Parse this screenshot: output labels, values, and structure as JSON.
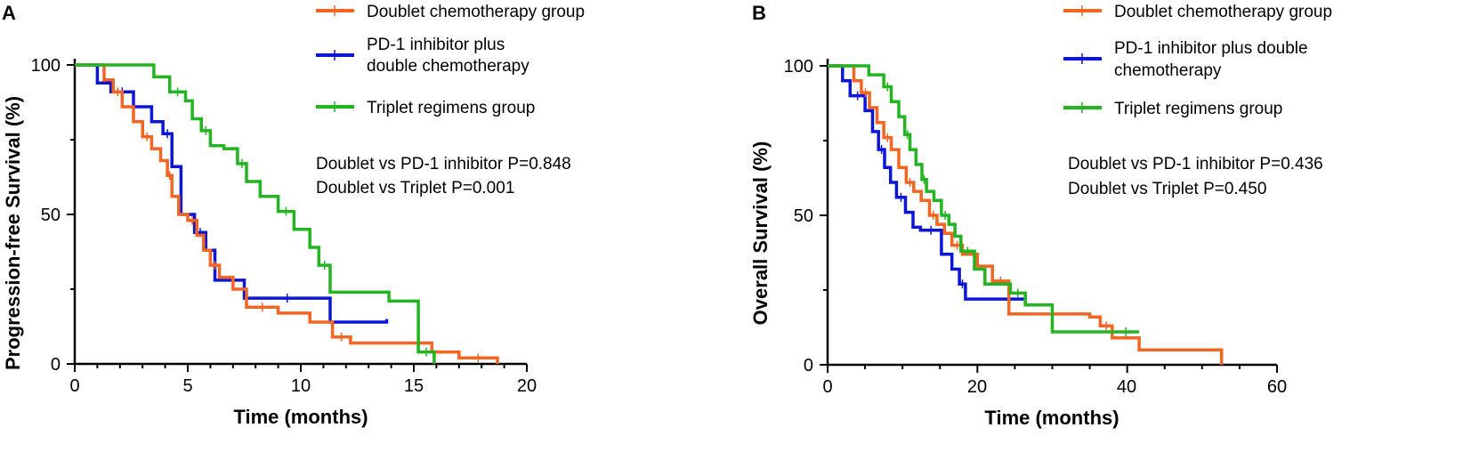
{
  "chart_data": [
    {
      "type": "line",
      "subtype": "kaplan-meier",
      "panel_label": "A",
      "title": "",
      "xlabel": "Time (months)",
      "ylabel": "Progression-free Survival (%)",
      "xlim": [
        0,
        20
      ],
      "ylim": [
        0,
        100
      ],
      "x_ticks": [
        "0",
        "5",
        "10",
        "15",
        "20"
      ],
      "y_ticks": [
        "0",
        "50",
        "100"
      ],
      "grid": false,
      "legend": [
        {
          "label": "Doublet chemotherapy group",
          "color": "#f26522"
        },
        {
          "label_lines": [
            "PD-1 inhibitor plus",
            "double chemotherapy"
          ],
          "color": "#0b16d6"
        },
        {
          "label": "Triplet regimens group",
          "color": "#22b521"
        }
      ],
      "annotations": [
        "Doublet vs PD-1 inhibitor P=0.848",
        "Doublet vs Triplet P=0.001"
      ],
      "series": [
        {
          "name": "PD-1 inhibitor plus double chemotherapy",
          "color": "#0b16d6",
          "x": [
            0,
            1,
            1.6,
            2.6,
            3.4,
            3.9,
            4.3,
            4.7,
            5.3,
            5.8,
            6.2,
            7.5,
            11.3,
            13.8
          ],
          "y": [
            100,
            94,
            91,
            86,
            81,
            77,
            66,
            50,
            44,
            38,
            28,
            22,
            14,
            15
          ]
        },
        {
          "name": "Doublet chemotherapy group",
          "color": "#f26522",
          "x": [
            0,
            1.3,
            1.7,
            2.1,
            2.6,
            3.0,
            3.4,
            3.8,
            4.1,
            4.3,
            4.6,
            5.0,
            5.4,
            5.7,
            6.0,
            6.4,
            7.0,
            7.6,
            9.0,
            10.4,
            11.4,
            12.2,
            15.8,
            17.0,
            18.7
          ],
          "y": [
            100,
            95,
            91,
            86,
            81,
            76,
            72,
            68,
            63,
            56,
            50,
            48,
            43,
            38,
            33,
            29,
            25,
            19,
            17,
            14,
            9,
            7,
            4,
            2,
            0
          ]
        },
        {
          "name": "Triplet regimens group",
          "color": "#22b521",
          "x": [
            0,
            3.5,
            4.2,
            4.9,
            5.2,
            5.6,
            6.0,
            6.6,
            7.2,
            7.6,
            8.2,
            9.0,
            9.7,
            10.4,
            10.8,
            11.3,
            13.9,
            15.2,
            15.9
          ],
          "y": [
            100,
            96,
            91,
            88,
            82,
            78,
            73,
            72,
            67,
            61,
            56,
            51,
            45,
            39,
            33,
            24,
            21,
            4,
            0
          ]
        }
      ]
    },
    {
      "type": "line",
      "subtype": "kaplan-meier",
      "panel_label": "B",
      "title": "",
      "xlabel": "Time (months)",
      "ylabel": "Overall Survival (%)",
      "xlim": [
        0,
        60
      ],
      "ylim": [
        0,
        100
      ],
      "x_ticks": [
        "0",
        "20",
        "40",
        "60"
      ],
      "y_ticks": [
        "0",
        "50",
        "100"
      ],
      "grid": false,
      "legend": [
        {
          "label": "Doublet chemotherapy group",
          "color": "#f26522"
        },
        {
          "label_lines": [
            "PD-1 inhibitor plus double",
            "chemotherapy"
          ],
          "color": "#0b16d6"
        },
        {
          "label": "Triplet regimens group",
          "color": "#22b521"
        }
      ],
      "annotations": [
        "Doublet vs PD-1 inhibitor P=0.436",
        "Doublet vs Triplet P=0.450"
      ],
      "series": [
        {
          "name": "PD-1 inhibitor plus double chemotherapy",
          "color": "#0b16d6",
          "x": [
            0,
            2,
            3,
            5,
            6,
            6.8,
            7.6,
            8.4,
            9.2,
            10.4,
            11.4,
            12.4,
            15.2,
            16.6,
            17.6,
            18.4,
            26.2
          ],
          "y": [
            100,
            95,
            90,
            85,
            78,
            72,
            66,
            61,
            56,
            51,
            46,
            45,
            37,
            32,
            27,
            22,
            22
          ]
        },
        {
          "name": "Doublet chemotherapy group",
          "color": "#f26522",
          "x": [
            0,
            3.5,
            4.5,
            5.6,
            6.6,
            7.5,
            8.5,
            9.5,
            10.5,
            11.5,
            12.5,
            13.6,
            14.6,
            15.6,
            16.6,
            18,
            20,
            22,
            24.2,
            35,
            36.4,
            38,
            41.6,
            52.6
          ],
          "y": [
            100,
            95,
            91,
            86,
            81,
            76,
            72,
            66,
            61,
            58,
            55,
            50,
            47,
            44,
            40,
            37,
            33,
            28,
            17,
            16,
            13,
            9,
            5,
            0
          ]
        },
        {
          "name": "Triplet regimens group",
          "color": "#22b521",
          "x": [
            0,
            5.5,
            7.5,
            8.5,
            9.5,
            10.3,
            11,
            11.8,
            12.6,
            13.2,
            14.2,
            15.2,
            16.2,
            17,
            17.8,
            19.6,
            21,
            24.4,
            26.4,
            30,
            38,
            41.6
          ],
          "y": [
            100,
            97,
            93,
            88,
            83,
            77,
            72,
            67,
            62,
            58,
            55,
            50,
            47,
            43,
            38,
            32,
            27,
            24,
            20,
            11,
            11,
            11
          ]
        }
      ]
    }
  ]
}
